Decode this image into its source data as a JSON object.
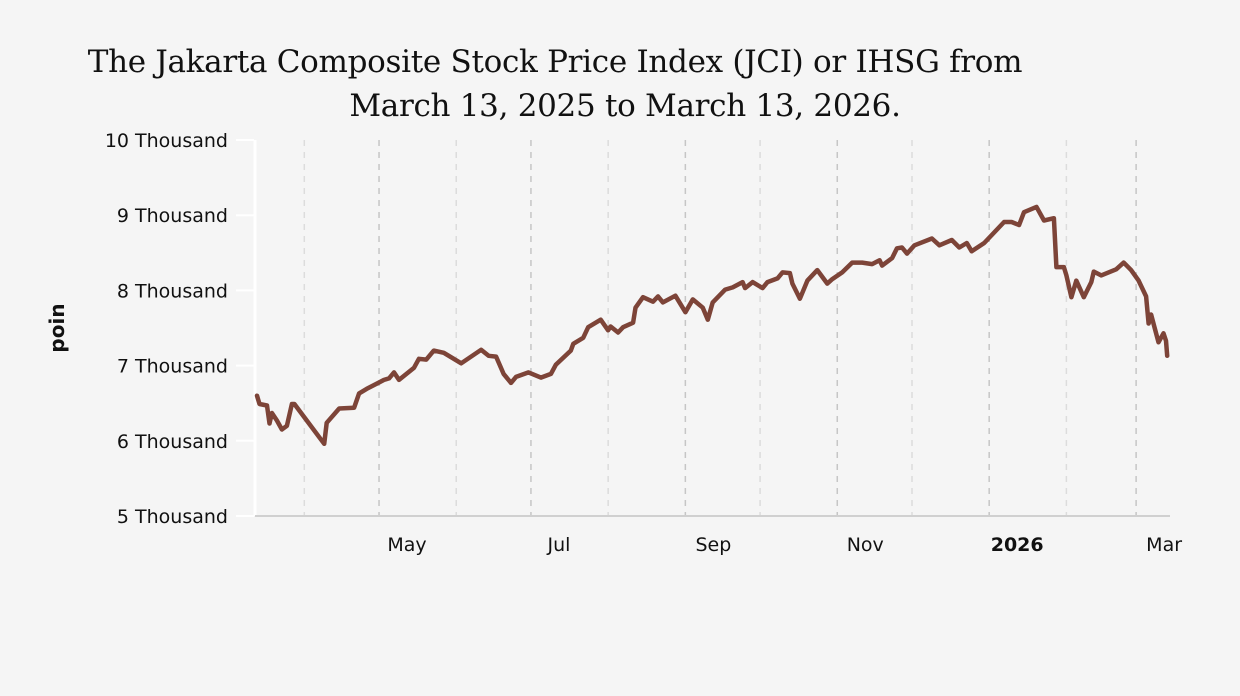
{
  "chart_data": {
    "type": "line",
    "title_line1": "The Jakarta Composite Stock Price Index (JCI) or IHSG from",
    "title_line2": "March 13, 2025 to March 13, 2026.",
    "xlabel": "",
    "ylabel": "poin",
    "x_unit": "days since March 13, 2025",
    "xlim": [
      0,
      365
    ],
    "ylim": [
      5000,
      10000
    ],
    "y_ticks": [
      {
        "value": 10000,
        "label": "10 Thousand"
      },
      {
        "value": 9000,
        "label": "9 Thousand"
      },
      {
        "value": 8000,
        "label": "8 Thousand"
      },
      {
        "value": 7000,
        "label": "7 Thousand"
      },
      {
        "value": 6000,
        "label": "6 Thousand"
      },
      {
        "value": 5000,
        "label": "5 Thousand"
      }
    ],
    "x_ticks": [
      {
        "value": 49,
        "label": "May",
        "bold": false
      },
      {
        "value": 110,
        "label": "Jul",
        "bold": false
      },
      {
        "value": 172,
        "label": "Sep",
        "bold": false
      },
      {
        "value": 233,
        "label": "Nov",
        "bold": false
      },
      {
        "value": 294,
        "label": "2026",
        "bold": true
      },
      {
        "value": 353,
        "label": "Mar",
        "bold": false
      }
    ],
    "x_minor_grid": [
      19,
      80,
      141,
      202,
      263,
      325
    ],
    "grid": true,
    "series": [
      {
        "name": "IHSG",
        "color": "#7d4438",
        "x": [
          0,
          1,
          4,
          5,
          6,
          8,
          10,
          12,
          14,
          15,
          27,
          28,
          33,
          39,
          41,
          44,
          51,
          53,
          55,
          57,
          63,
          65,
          68,
          71,
          75,
          82,
          90,
          93,
          96,
          99,
          102,
          104,
          109,
          114,
          118,
          120,
          126,
          127,
          131,
          133,
          138,
          141,
          142,
          145,
          147,
          151,
          152,
          155,
          159,
          161,
          163,
          168,
          172,
          175,
          179,
          181,
          183,
          188,
          191,
          195,
          196,
          199,
          203,
          205,
          209,
          211,
          214,
          215,
          218,
          221,
          225,
          229,
          231,
          235,
          239,
          243,
          247,
          250,
          251,
          255,
          257,
          259,
          261,
          264,
          271,
          274,
          279,
          282,
          285,
          287,
          292,
          300,
          303,
          306,
          308,
          313,
          316,
          320,
          321,
          324,
          325,
          327,
          329,
          332,
          335,
          336,
          339,
          345,
          348,
          351,
          354,
          357,
          358,
          359,
          362,
          364,
          365,
          365.5
        ],
        "y": [
          6600,
          6490,
          6470,
          6230,
          6370,
          6270,
          6150,
          6200,
          6490,
          6490,
          5960,
          6240,
          6430,
          6440,
          6630,
          6690,
          6810,
          6830,
          6910,
          6810,
          6970,
          7090,
          7080,
          7200,
          7170,
          7030,
          7210,
          7130,
          7120,
          6890,
          6770,
          6850,
          6910,
          6840,
          6890,
          7010,
          7200,
          7290,
          7370,
          7510,
          7610,
          7470,
          7520,
          7440,
          7510,
          7570,
          7770,
          7910,
          7850,
          7920,
          7840,
          7930,
          7710,
          7880,
          7770,
          7610,
          7840,
          8010,
          8040,
          8110,
          8030,
          8110,
          8030,
          8110,
          8160,
          8240,
          8230,
          8090,
          7890,
          8130,
          8270,
          8090,
          8150,
          8240,
          8370,
          8370,
          8350,
          8400,
          8330,
          8430,
          8560,
          8570,
          8490,
          8600,
          8690,
          8600,
          8670,
          8570,
          8630,
          8520,
          8630,
          8910,
          8910,
          8870,
          9040,
          9110,
          8930,
          8960,
          8310,
          8310,
          8200,
          7910,
          8130,
          7910,
          8110,
          8250,
          8200,
          8280,
          8370,
          8270,
          8130,
          7920,
          7560,
          7680,
          7310,
          7430,
          7330,
          7130
        ]
      }
    ]
  }
}
